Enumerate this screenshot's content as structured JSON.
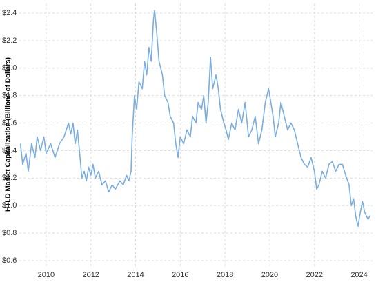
{
  "chart_data": {
    "type": "line",
    "y_label": "HTLD Market Capitalization (Billions of Dollars)",
    "x": [
      2008.85,
      2008.95,
      2009.1,
      2009.2,
      2009.35,
      2009.5,
      2009.6,
      2009.75,
      2009.9,
      2010.0,
      2010.2,
      2010.4,
      2010.6,
      2010.8,
      2011.0,
      2011.1,
      2011.2,
      2011.3,
      2011.4,
      2011.5,
      2011.6,
      2011.7,
      2011.8,
      2011.9,
      2012.0,
      2012.1,
      2012.2,
      2012.35,
      2012.5,
      2012.65,
      2012.8,
      2012.95,
      2013.1,
      2013.3,
      2013.45,
      2013.6,
      2013.7,
      2013.8,
      2013.85,
      2013.95,
      2014.05,
      2014.15,
      2014.3,
      2014.4,
      2014.5,
      2014.6,
      2014.7,
      2014.8,
      2014.85,
      2014.95,
      2015.05,
      2015.2,
      2015.3,
      2015.45,
      2015.55,
      2015.7,
      2015.8,
      2015.9,
      2016.0,
      2016.15,
      2016.3,
      2016.45,
      2016.55,
      2016.7,
      2016.8,
      2016.95,
      2017.05,
      2017.15,
      2017.25,
      2017.35,
      2017.45,
      2017.6,
      2017.7,
      2017.8,
      2017.95,
      2018.05,
      2018.15,
      2018.3,
      2018.45,
      2018.6,
      2018.75,
      2018.9,
      2019.05,
      2019.2,
      2019.35,
      2019.5,
      2019.65,
      2019.8,
      2019.95,
      2020.05,
      2020.15,
      2020.25,
      2020.4,
      2020.5,
      2020.65,
      2020.8,
      2020.95,
      2021.1,
      2021.25,
      2021.4,
      2021.55,
      2021.7,
      2021.85,
      2022.0,
      2022.1,
      2022.2,
      2022.35,
      2022.5,
      2022.65,
      2022.8,
      2022.95,
      2023.1,
      2023.25,
      2023.4,
      2023.55,
      2023.65,
      2023.75,
      2023.85,
      2023.95,
      2024.05,
      2024.15,
      2024.25,
      2024.4,
      2024.5
    ],
    "series": [
      {
        "name": "HTLD",
        "color": "#7aaee0",
        "values": [
          1.45,
          1.3,
          1.38,
          1.25,
          1.45,
          1.35,
          1.5,
          1.4,
          1.5,
          1.38,
          1.45,
          1.35,
          1.45,
          1.5,
          1.6,
          1.52,
          1.6,
          1.45,
          1.55,
          1.38,
          1.2,
          1.25,
          1.18,
          1.28,
          1.22,
          1.3,
          1.2,
          1.25,
          1.15,
          1.18,
          1.1,
          1.15,
          1.12,
          1.18,
          1.15,
          1.22,
          1.18,
          1.25,
          1.5,
          1.8,
          1.7,
          1.9,
          1.85,
          2.05,
          1.95,
          2.15,
          2.05,
          2.35,
          2.42,
          2.25,
          2.05,
          1.95,
          1.8,
          1.75,
          1.65,
          1.6,
          1.45,
          1.35,
          1.5,
          1.45,
          1.55,
          1.5,
          1.65,
          1.6,
          1.75,
          1.7,
          1.8,
          1.6,
          1.75,
          2.08,
          1.85,
          1.95,
          1.85,
          1.7,
          1.6,
          1.55,
          1.48,
          1.6,
          1.55,
          1.7,
          1.6,
          1.75,
          1.5,
          1.55,
          1.65,
          1.45,
          1.55,
          1.75,
          1.85,
          1.75,
          1.65,
          1.5,
          1.6,
          1.75,
          1.65,
          1.55,
          1.6,
          1.55,
          1.45,
          1.35,
          1.3,
          1.28,
          1.35,
          1.25,
          1.12,
          1.15,
          1.25,
          1.2,
          1.3,
          1.32,
          1.25,
          1.3,
          1.3,
          1.22,
          1.15,
          1.0,
          1.05,
          0.92,
          0.85,
          0.95,
          1.03,
          0.95,
          0.9,
          0.93
        ]
      }
    ],
    "xlim": [
      2008.8,
      2024.6
    ],
    "xticks": [
      2010,
      2012,
      2014,
      2016,
      2018,
      2020,
      2022,
      2024
    ],
    "ylim": [
      0.55,
      2.47
    ],
    "yticks": [
      {
        "value": 0.6,
        "label": "$0.6"
      },
      {
        "value": 0.8,
        "label": "$0.8"
      },
      {
        "value": 1.0,
        "label": "$1.0"
      },
      {
        "value": 1.2,
        "label": "$1.2"
      },
      {
        "value": 1.4,
        "label": "$1.4"
      },
      {
        "value": 1.6,
        "label": "$1.6"
      },
      {
        "value": 1.8,
        "label": "$1.8"
      },
      {
        "value": 2.0,
        "label": "$2.0"
      },
      {
        "value": 2.2,
        "label": "$2.2"
      },
      {
        "value": 2.4,
        "label": "$2.4"
      }
    ],
    "grid": true
  }
}
